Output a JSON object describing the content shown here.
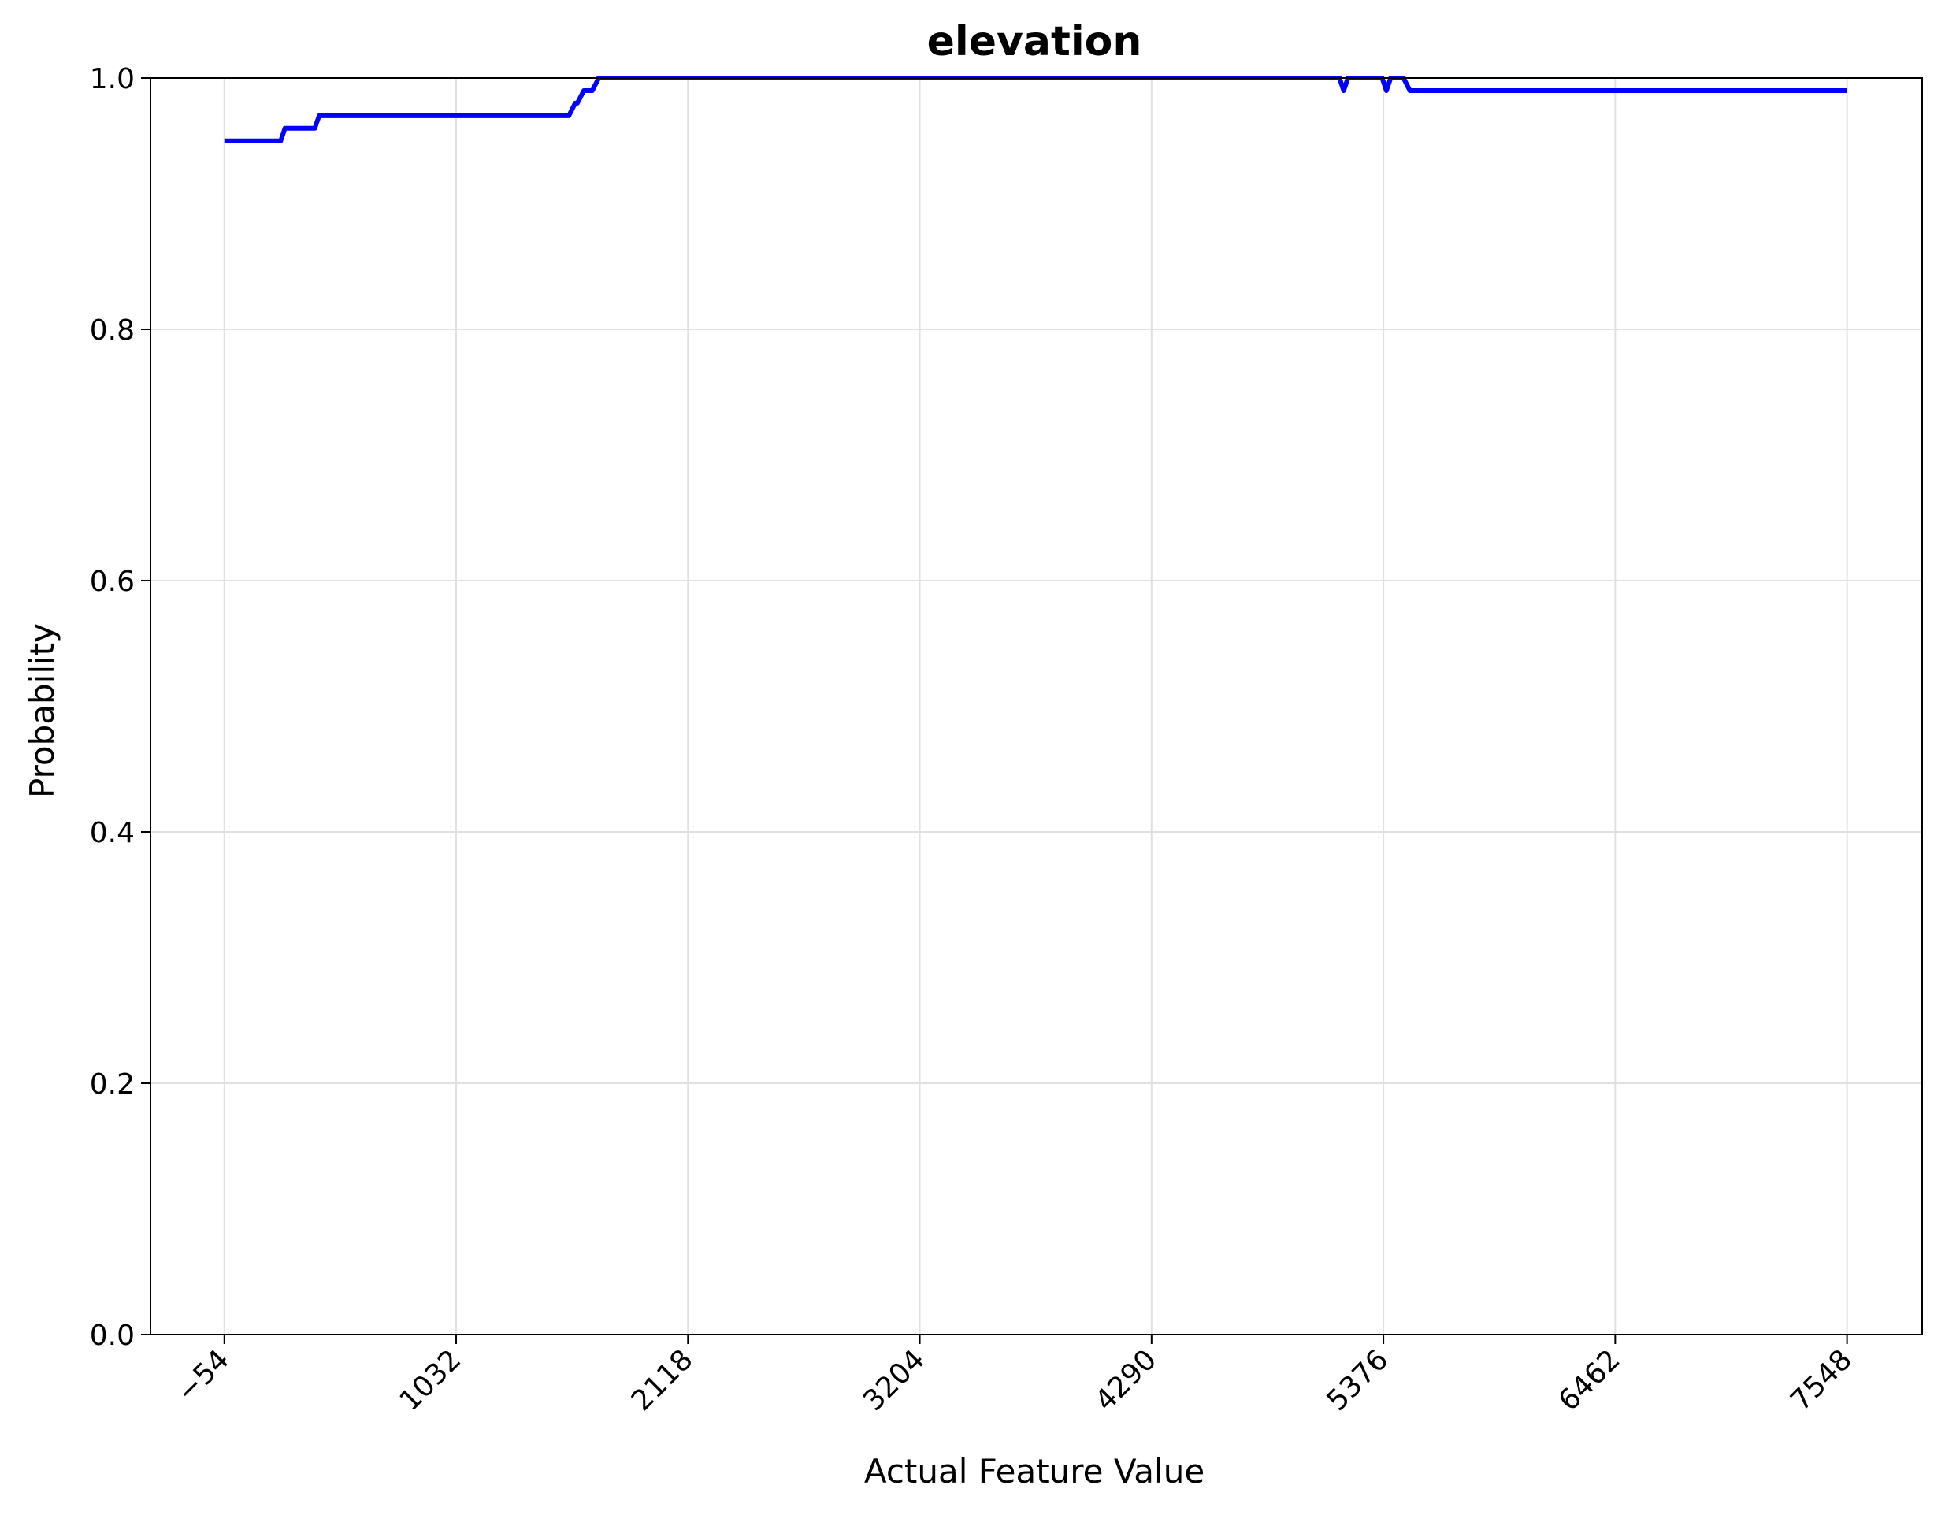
{
  "chart_data": {
    "type": "line",
    "title": "elevation",
    "xlabel": "Actual Feature Value",
    "ylabel": "Probability",
    "xlim": [
      -400,
      7900
    ],
    "ylim": [
      0.0,
      1.0
    ],
    "grid": true,
    "x_ticks": [
      -54,
      1032,
      2118,
      3204,
      4290,
      5376,
      6462,
      7548
    ],
    "x_tick_labels": [
      "−54",
      "1032",
      "2118",
      "3204",
      "4290",
      "5376",
      "6462",
      "7548"
    ],
    "y_ticks": [
      0.0,
      0.2,
      0.4,
      0.6,
      0.8,
      1.0
    ],
    "y_tick_labels": [
      "0.0",
      "0.2",
      "0.4",
      "0.6",
      "0.8",
      "1.0"
    ],
    "series": [
      {
        "color": "#0000ff",
        "x": [
          -54,
          210,
          230,
          370,
          390,
          1560,
          1590,
          1600,
          1630,
          1670,
          1700,
          1720,
          1750,
          5170,
          5190,
          5210,
          5230,
          5370,
          5390,
          5410,
          5470,
          5500,
          7548
        ],
        "y": [
          0.95,
          0.95,
          0.96,
          0.96,
          0.97,
          0.97,
          0.98,
          0.98,
          0.99,
          0.99,
          1.0,
          1.0,
          1.0,
          1.0,
          0.99,
          1.0,
          1.0,
          1.0,
          0.99,
          1.0,
          1.0,
          0.99,
          0.99
        ]
      }
    ]
  }
}
